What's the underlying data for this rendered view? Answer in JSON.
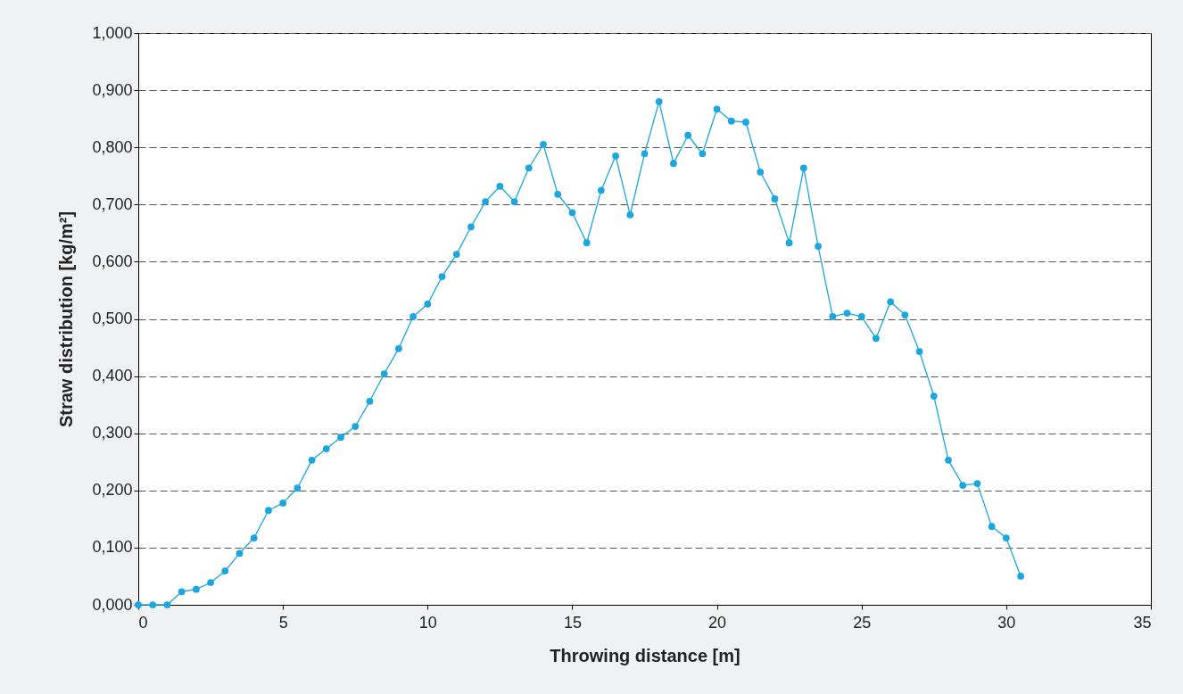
{
  "chart_data": {
    "type": "line",
    "xlabel": "Throwing distance [m]",
    "ylabel": "Straw distribution [kg/m²]",
    "x": [
      0,
      0.5,
      1,
      1.5,
      2,
      2.5,
      3,
      3.5,
      4,
      4.5,
      5,
      5.5,
      6,
      6.5,
      7,
      7.5,
      8,
      8.5,
      9,
      9.5,
      10,
      10.5,
      11,
      11.5,
      12,
      12.5,
      13,
      13.5,
      14,
      14.5,
      15,
      15.5,
      16,
      16.5,
      17,
      17.5,
      18,
      18.5,
      19,
      19.5,
      20,
      20.5,
      21,
      21.5,
      22,
      22.5,
      23,
      23.5,
      24,
      24.5,
      25,
      25.5,
      26,
      26.5,
      27,
      27.5,
      28,
      28.5,
      29,
      29.5,
      30,
      30.5
    ],
    "series": [
      {
        "color": "#1ba6df",
        "values": [
          0.0,
          0.0,
          0.0,
          0.023,
          0.027,
          0.039,
          0.059,
          0.09,
          0.117,
          0.165,
          0.178,
          0.204,
          0.253,
          0.273,
          0.293,
          0.312,
          0.356,
          0.404,
          0.448,
          0.504,
          0.526,
          0.574,
          0.613,
          0.661,
          0.705,
          0.732,
          0.705,
          0.764,
          0.805,
          0.718,
          0.686,
          0.633,
          0.725,
          0.785,
          0.682,
          0.789,
          0.88,
          0.772,
          0.821,
          0.789,
          0.867,
          0.846,
          0.844,
          0.757,
          0.71,
          0.633,
          0.764,
          0.627,
          0.504,
          0.51,
          0.504,
          0.466,
          0.53,
          0.507,
          0.443,
          0.365,
          0.253,
          0.209,
          0.212,
          0.137,
          0.117,
          0.05
        ]
      }
    ],
    "xlim": [
      0,
      35
    ],
    "xticks": [
      0,
      5,
      10,
      15,
      20,
      25,
      30,
      35
    ],
    "ylim": [
      0,
      1
    ],
    "yticks": [
      {
        "value": 0,
        "label": "0,000"
      },
      {
        "value": 0.1,
        "label": "0,100"
      },
      {
        "value": 0.2,
        "label": "0,200"
      },
      {
        "value": 0.3,
        "label": "0,300"
      },
      {
        "value": 0.4,
        "label": "0,400"
      },
      {
        "value": 0.5,
        "label": "0,500"
      },
      {
        "value": 0.6,
        "label": "0,600"
      },
      {
        "value": 0.7,
        "label": "0,700"
      },
      {
        "value": 0.8,
        "label": "0,800"
      },
      {
        "value": 0.9,
        "label": "0,900"
      },
      {
        "value": 1,
        "label": "1,000"
      }
    ],
    "grid": "y",
    "marker": "circle",
    "line_style": "solid"
  }
}
